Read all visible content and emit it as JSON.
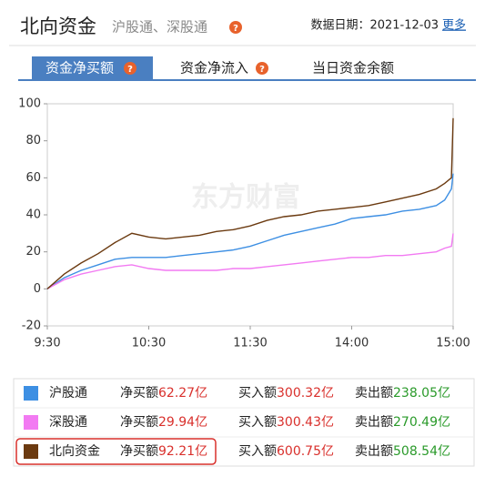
{
  "header": {
    "title": "北向资金",
    "subtitle": "沪股通、深股通",
    "help": "?",
    "date": "数据日期：2021-12-03",
    "more": "更多"
  },
  "tabs": [
    "资金净买额",
    "资金净流入",
    "当日资金余额"
  ],
  "chart_data": {
    "type": "line",
    "watermark": "东方财富",
    "x": [
      0,
      10,
      20,
      30,
      40,
      50,
      60,
      70,
      80,
      90,
      100,
      110,
      120,
      130,
      140,
      150,
      160,
      170,
      180,
      190,
      200,
      210,
      220,
      230,
      235,
      239,
      240
    ],
    "xlim": [
      0,
      240
    ],
    "xticks": [
      {
        "value": 0,
        "label": "9:30"
      },
      {
        "value": 60,
        "label": "10:30"
      },
      {
        "value": 120,
        "label": "11:30"
      },
      {
        "value": 180,
        "label": "14:00"
      },
      {
        "value": 240,
        "label": "15:00"
      }
    ],
    "ylim": [
      -20,
      100
    ],
    "yticks": [
      -20,
      0,
      20,
      40,
      60,
      80,
      100
    ],
    "grid": false,
    "series": [
      {
        "name": "沪股通",
        "color": "#3d8fe3",
        "values": [
          0,
          6,
          10,
          13,
          16,
          17,
          17,
          17,
          18,
          19,
          20,
          21,
          23,
          26,
          29,
          31,
          33,
          35,
          38,
          39,
          40,
          42,
          43,
          45,
          48,
          54,
          62.27
        ]
      },
      {
        "name": "深股通",
        "color": "#f27af2",
        "values": [
          0,
          5,
          8,
          10,
          12,
          13,
          11,
          10,
          10,
          10,
          10,
          11,
          11,
          12,
          13,
          14,
          15,
          16,
          17,
          17,
          18,
          18,
          19,
          20,
          22,
          23,
          29.94
        ]
      },
      {
        "name": "北向资金",
        "color": "#6b3a10",
        "values": [
          0,
          8,
          14,
          19,
          25,
          30,
          28,
          27,
          28,
          29,
          31,
          32,
          34,
          37,
          39,
          40,
          42,
          43,
          44,
          45,
          47,
          49,
          51,
          54,
          57,
          60,
          92.21
        ]
      }
    ]
  },
  "table": {
    "labels": [
      "净买额",
      "买入额",
      "卖出额"
    ],
    "rows": [
      {
        "net": "62.27亿",
        "buy": "300.32亿",
        "sell": "238.05亿"
      },
      {
        "net": "29.94亿",
        "buy": "300.43亿",
        "sell": "270.49亿"
      },
      {
        "net": "92.21亿",
        "buy": "600.75亿",
        "sell": "508.54亿"
      }
    ]
  }
}
